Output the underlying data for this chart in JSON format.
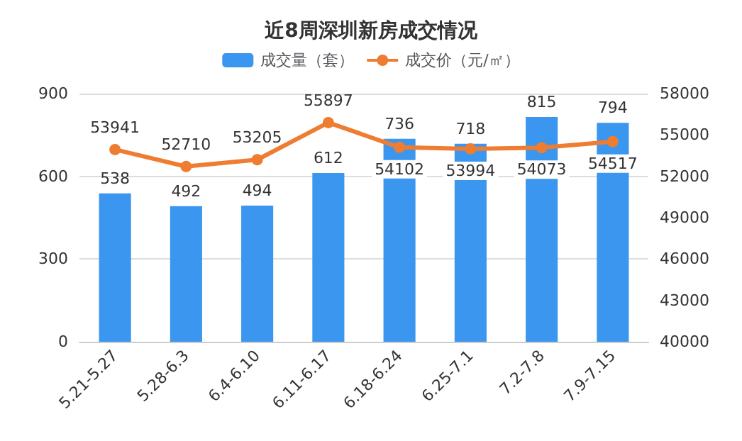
{
  "chart_data": {
    "type": "bar",
    "title": "近8周深圳新房成交情况",
    "categories": [
      "5.21-5.27",
      "5.28-6.3",
      "6.4-6.10",
      "6.11-6.17",
      "6.18-6.24",
      "6.25-7.1",
      "7.2-7.8",
      "7.9-7.15"
    ],
    "series": [
      {
        "name": "成交量（套）",
        "color": "#3a96ee",
        "values": [
          538,
          492,
          494,
          612,
          736,
          718,
          815,
          794
        ]
      },
      {
        "name": "成交价（元/㎡）",
        "type": "line",
        "axis": "y2",
        "color": "#ee7d31",
        "values": [
          53941,
          52710,
          53205,
          55897,
          54102,
          53994,
          54073,
          54517
        ]
      }
    ],
    "ylim": [
      0,
      900
    ],
    "yticks": [
      0,
      300,
      600,
      900
    ],
    "y2lim": [
      40000,
      58000
    ],
    "y2ticks": [
      40000,
      43000,
      46000,
      49000,
      52000,
      55000,
      58000
    ],
    "grid": "y",
    "legend": "top",
    "marker": "circle",
    "line_style": "solid",
    "data_labels": true
  }
}
